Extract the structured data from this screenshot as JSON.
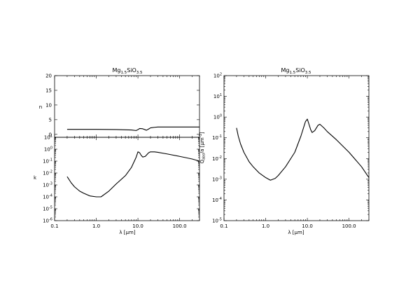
{
  "chart_data": [
    {
      "type": "line",
      "panel": "n",
      "title_base": "Mg",
      "title_sub1": "1.5",
      "title_mid": "SiO",
      "title_sub2": "3.5",
      "xlabel": "",
      "ylabel": "n",
      "xscale": "log",
      "xlim": [
        0.1,
        300
      ],
      "ylim": [
        -1,
        20
      ],
      "yticks": [
        0,
        5,
        10,
        15,
        20
      ],
      "ytick_labels": [
        "0",
        "5",
        "10",
        "15",
        "20"
      ],
      "x": [
        0.2,
        0.5,
        1.0,
        3.0,
        7.0,
        9.0,
        10.0,
        11.0,
        13.0,
        16.0,
        18.0,
        20.0,
        25.0,
        30.0,
        50.0,
        100.0,
        300.0
      ],
      "y": [
        1.7,
        1.7,
        1.7,
        1.65,
        1.5,
        1.3,
        1.6,
        2.0,
        1.9,
        1.4,
        1.8,
        2.2,
        2.4,
        2.5,
        2.5,
        2.5,
        2.5
      ]
    },
    {
      "type": "line",
      "panel": "k",
      "xlabel_base": "λ [",
      "xlabel_mu": "μ",
      "xlabel_end": "m]",
      "ylabel": "k",
      "xscale": "log",
      "yscale": "log",
      "xlim": [
        0.1,
        300
      ],
      "ylim": [
        1e-06,
        10
      ],
      "xtick_labels": [
        "0.1",
        "1.0",
        "10.0",
        "100.0"
      ],
      "ytick_labels": [
        {
          "base": "10",
          "exp": "-6"
        },
        {
          "base": "10",
          "exp": "-5"
        },
        {
          "base": "10",
          "exp": "-4"
        },
        {
          "base": "10",
          "exp": "-3"
        },
        {
          "base": "10",
          "exp": "-2"
        },
        {
          "base": "10",
          "exp": "-1"
        },
        {
          "base": "10",
          "exp": "0"
        },
        {
          "base": "10",
          "exp": "1"
        }
      ],
      "x": [
        0.2,
        0.25,
        0.3,
        0.4,
        0.5,
        0.7,
        1.0,
        1.3,
        2.0,
        3.0,
        5.0,
        7.0,
        9.0,
        10.0,
        11.0,
        12.0,
        13.0,
        15.0,
        18.0,
        20.0,
        25.0,
        30.0,
        50.0,
        100.0,
        200.0,
        300.0
      ],
      "y": [
        0.005,
        0.0015,
        0.0007,
        0.0003,
        0.0002,
        0.00012,
        0.0001,
        0.0001,
        0.0003,
        0.0012,
        0.006,
        0.03,
        0.2,
        0.6,
        0.5,
        0.3,
        0.22,
        0.25,
        0.5,
        0.6,
        0.6,
        0.55,
        0.4,
        0.25,
        0.15,
        0.1
      ]
    },
    {
      "type": "line",
      "panel": "q",
      "title_base": "Mg",
      "title_sub1": "1.5",
      "title_mid": "SiO",
      "title_sub2": "3.5",
      "xlabel_base": "λ [",
      "xlabel_mu": "μ",
      "xlabel_end": "m]",
      "ylabel_q": "Q",
      "ylabel_qsub": "abs",
      "ylabel_mid": "/a [",
      "ylabel_mu": "μ",
      "ylabel_m": "m",
      "ylabel_exp": "-1",
      "ylabel_end": "]",
      "xscale": "log",
      "yscale": "log",
      "xlim": [
        0.1,
        300
      ],
      "ylim": [
        1e-05,
        100
      ],
      "xtick_labels": [
        "0.1",
        "1.0",
        "10.0",
        "100.0"
      ],
      "ytick_labels": [
        {
          "base": "10",
          "exp": "-5"
        },
        {
          "base": "10",
          "exp": "-4"
        },
        {
          "base": "10",
          "exp": "-3"
        },
        {
          "base": "10",
          "exp": "-2"
        },
        {
          "base": "10",
          "exp": "-1"
        },
        {
          "base": "10",
          "exp": "0"
        },
        {
          "base": "10",
          "exp": "1"
        },
        {
          "base": "10",
          "exp": "2"
        }
      ],
      "x": [
        0.2,
        0.22,
        0.25,
        0.3,
        0.4,
        0.5,
        0.7,
        1.0,
        1.3,
        1.7,
        2.0,
        3.0,
        5.0,
        7.0,
        9.0,
        10.0,
        12.0,
        13.0,
        15.0,
        18.0,
        20.0,
        25.0,
        30.0,
        50.0,
        100.0,
        200.0,
        300.0
      ],
      "y": [
        0.3,
        0.12,
        0.05,
        0.02,
        0.007,
        0.004,
        0.002,
        0.0012,
        0.0009,
        0.0011,
        0.0015,
        0.004,
        0.02,
        0.12,
        0.6,
        0.8,
        0.25,
        0.18,
        0.22,
        0.4,
        0.45,
        0.3,
        0.2,
        0.08,
        0.02,
        0.004,
        0.0012
      ]
    }
  ]
}
